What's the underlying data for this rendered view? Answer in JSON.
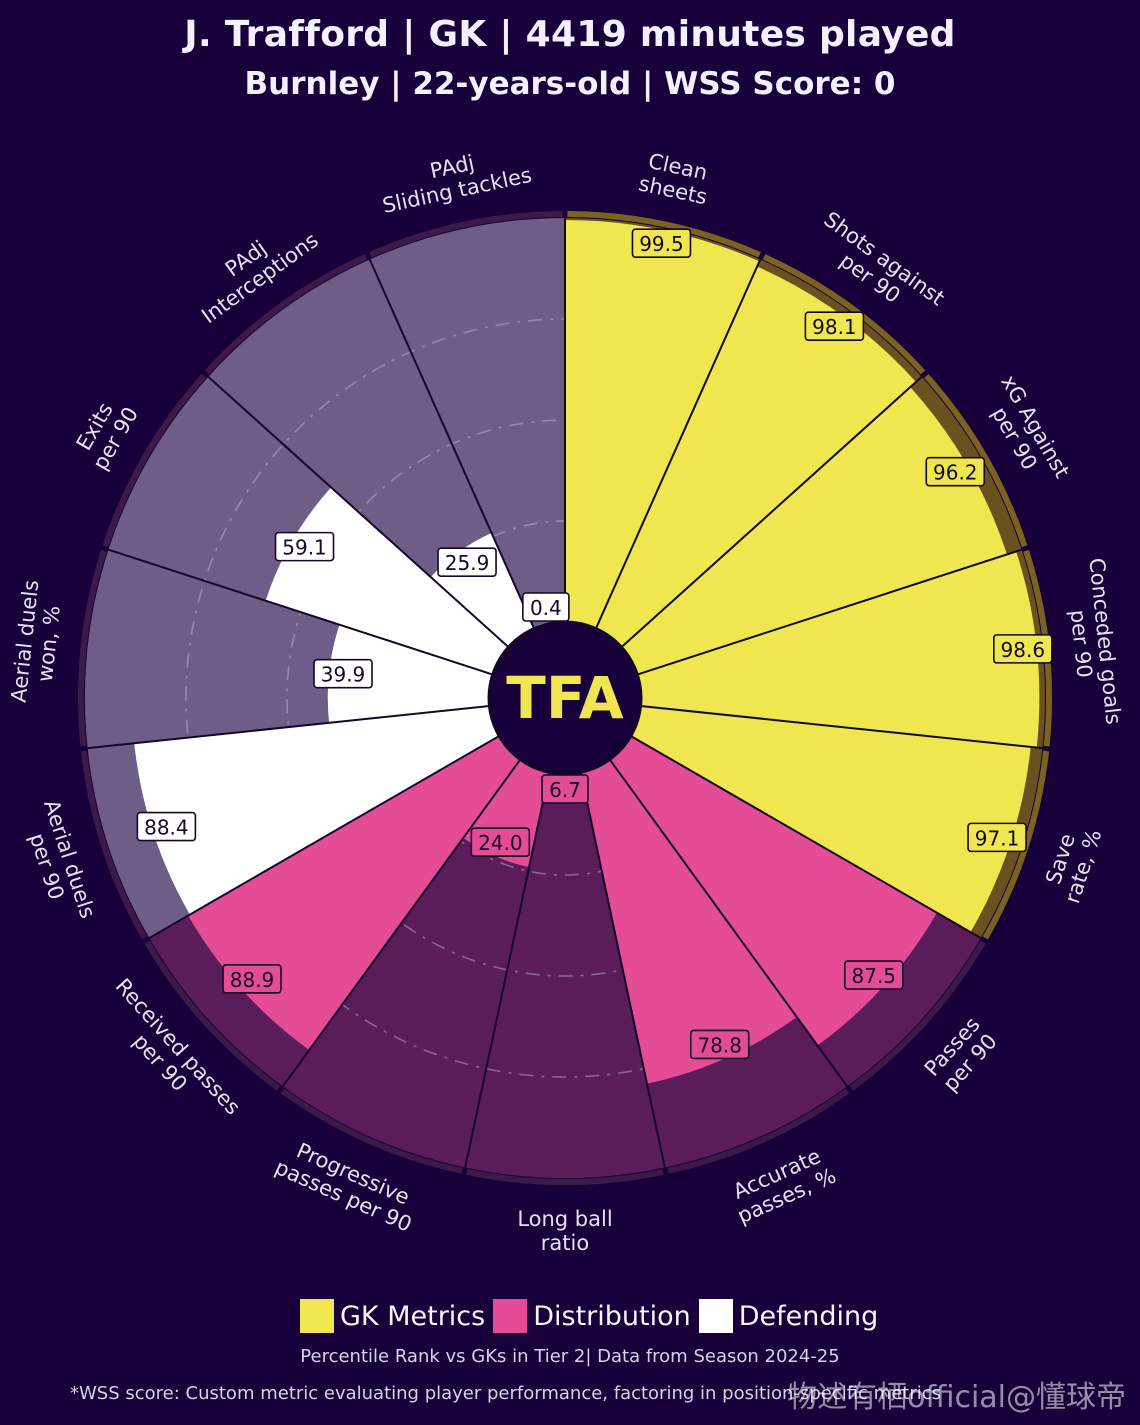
{
  "header": {
    "title": "J. Trafford | GK | 4419 minutes played",
    "subtitle": "Burnley | 22-years-old | WSS Score: 0"
  },
  "center_logo": {
    "text": "TFA"
  },
  "colors": {
    "background": "#18003a",
    "gk": "#f0e650",
    "distribution": "#e54c96",
    "defending": "#ffffff",
    "gk_bg": "#6b5120",
    "distribution_bg": "#5a1d5a",
    "defending_bg": "#6e5d86",
    "logo_circle": "#18003a",
    "logo_text": "#f0e650"
  },
  "legend": {
    "items": [
      {
        "label": "GK Metrics",
        "color": "#f0e650"
      },
      {
        "label": "Distribution",
        "color": "#e54c96"
      },
      {
        "label": "Defending",
        "color": "#ffffff"
      }
    ]
  },
  "footnote": "Percentile Rank vs GKs in Tier 2| Data from Season 2024-25",
  "disclaimer": "*WSS score: Custom metric evaluating player performance, factoring in position-specific metrics",
  "watermark": "物述有栖official@懂球帝",
  "chart_data": {
    "type": "pizza",
    "value_range": [
      0,
      100
    ],
    "series": [
      {
        "category": "GK Metrics",
        "label_lines": [
          "Clean",
          "sheets"
        ],
        "value": 99.5
      },
      {
        "category": "GK Metrics",
        "label_lines": [
          "Shots against",
          "per 90"
        ],
        "value": 98.1
      },
      {
        "category": "GK Metrics",
        "label_lines": [
          "xG Against",
          "per 90"
        ],
        "value": 96.2
      },
      {
        "category": "GK Metrics",
        "label_lines": [
          "Conceded goals",
          "per 90"
        ],
        "value": 98.6
      },
      {
        "category": "GK Metrics",
        "label_lines": [
          "Save",
          "rate, %"
        ],
        "value": 97.1
      },
      {
        "category": "Distribution",
        "label_lines": [
          "Passes",
          "per 90"
        ],
        "value": 87.5
      },
      {
        "category": "Distribution",
        "label_lines": [
          "Accurate",
          "passes, %"
        ],
        "value": 78.8
      },
      {
        "category": "Distribution",
        "label_lines": [
          "Long ball",
          "ratio"
        ],
        "value": 6.7
      },
      {
        "category": "Distribution",
        "label_lines": [
          "Progressive",
          "passes per 90"
        ],
        "value": 24.0
      },
      {
        "category": "Distribution",
        "label_lines": [
          "Received passes",
          "per 90"
        ],
        "value": 88.9
      },
      {
        "category": "Defending",
        "label_lines": [
          "Aerial duels",
          "per 90"
        ],
        "value": 88.4
      },
      {
        "category": "Defending",
        "label_lines": [
          "Aerial duels",
          "won, %"
        ],
        "value": 39.9
      },
      {
        "category": "Defending",
        "label_lines": [
          "Exits",
          "per 90"
        ],
        "value": 59.1
      },
      {
        "category": "Defending",
        "label_lines": [
          "PAdj",
          "Interceptions"
        ],
        "value": 25.9
      },
      {
        "category": "Defending",
        "label_lines": [
          "PAdj",
          "Sliding tackles"
        ],
        "value": 0.4
      }
    ]
  }
}
